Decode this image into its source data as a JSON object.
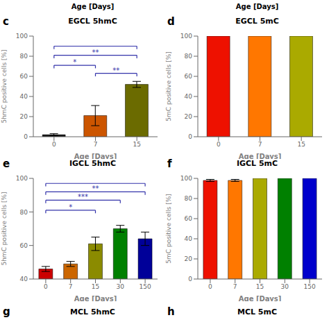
{
  "chart_data": [
    {
      "type": "bar",
      "title": "EGCL 5hmC",
      "annotations": [
        {
          "text": "c"
        }
      ],
      "categories": [
        "0",
        "7",
        "15"
      ],
      "values": [
        2,
        21,
        52
      ],
      "errors": [
        1,
        10,
        3
      ],
      "colors": [
        "#1a1a1a",
        "#cc5500",
        "#6b6b00"
      ],
      "y_label": "5hmC positive cells [%]",
      "x_label": "Age [Days]",
      "ylim": [
        0,
        100
      ],
      "yticks": [
        0,
        20,
        40,
        60,
        80,
        100
      ],
      "significance": [
        {
          "from": "0",
          "to": "15",
          "y": 90,
          "color": "#3333aa"
        },
        {
          "from": "0",
          "to": "15",
          "y": 81,
          "label": "**",
          "color": "#3333aa"
        },
        {
          "from": "0",
          "to": "7",
          "y": 71,
          "label": "*",
          "color": "#3333aa"
        },
        {
          "from": "7",
          "to": "15",
          "y": 63,
          "label": "**",
          "color": "#3333aa"
        }
      ]
    },
    {
      "type": "bar",
      "title": "EGCL 5mC",
      "annotations": [
        {
          "text": "d"
        }
      ],
      "categories": [
        "0",
        "7",
        "15"
      ],
      "values": [
        100,
        100,
        100
      ],
      "colors": [
        "#ee1100",
        "#ff7700",
        "#aaaa00"
      ],
      "y_label": "5mC positive cells [%]",
      "x_label": "Age [Days]",
      "ylim": [
        0,
        100
      ],
      "yticks": [
        0,
        20,
        40,
        60,
        80,
        100
      ]
    },
    {
      "type": "bar",
      "title": "IGCL 5hmC",
      "annotations": [
        {
          "text": "e"
        }
      ],
      "categories": [
        "0",
        "7",
        "15",
        "30",
        "150"
      ],
      "values": [
        46,
        49,
        61,
        70,
        64
      ],
      "errors": [
        1.5,
        1.5,
        4,
        2,
        4
      ],
      "colors": [
        "#cc0000",
        "#cc6600",
        "#8b8b00",
        "#008000",
        "#000099"
      ],
      "y_label": "5hmC positive cells [%]",
      "x_label": "Age [Days]",
      "ylim": [
        40,
        100
      ],
      "yticks": [
        40,
        60,
        80,
        100
      ],
      "significance": [
        {
          "from": "0",
          "to": "150",
          "y": 97,
          "color": "#3333aa"
        },
        {
          "from": "0",
          "to": "150",
          "y": 92,
          "label": "**",
          "color": "#3333aa"
        },
        {
          "from": "0",
          "to": "30",
          "y": 87,
          "label": "***",
          "color": "#3333aa"
        },
        {
          "from": "0",
          "to": "15",
          "y": 81,
          "label": "*",
          "color": "#3333aa"
        }
      ]
    },
    {
      "type": "bar",
      "title": "IGCL 5mC",
      "annotations": [
        {
          "text": "f"
        }
      ],
      "categories": [
        "0",
        "7",
        "15",
        "30",
        "150"
      ],
      "values": [
        98,
        98,
        100,
        100,
        100
      ],
      "errors": [
        1,
        1,
        0,
        0,
        0
      ],
      "colors": [
        "#ee1100",
        "#ff7700",
        "#aaaa00",
        "#008000",
        "#0000cc"
      ],
      "y_label": "5mC positive cells [%]",
      "x_label": "Age [Days]",
      "ylim": [
        0,
        100
      ],
      "yticks": [
        0,
        20,
        40,
        60,
        80,
        100
      ]
    }
  ],
  "header": [
    "Age [Days]",
    "Age [Days]"
  ],
  "footer": [
    {
      "label": "g",
      "title": "MCL 5hmC"
    },
    {
      "label": "h",
      "title": "MCL 5mC"
    }
  ]
}
